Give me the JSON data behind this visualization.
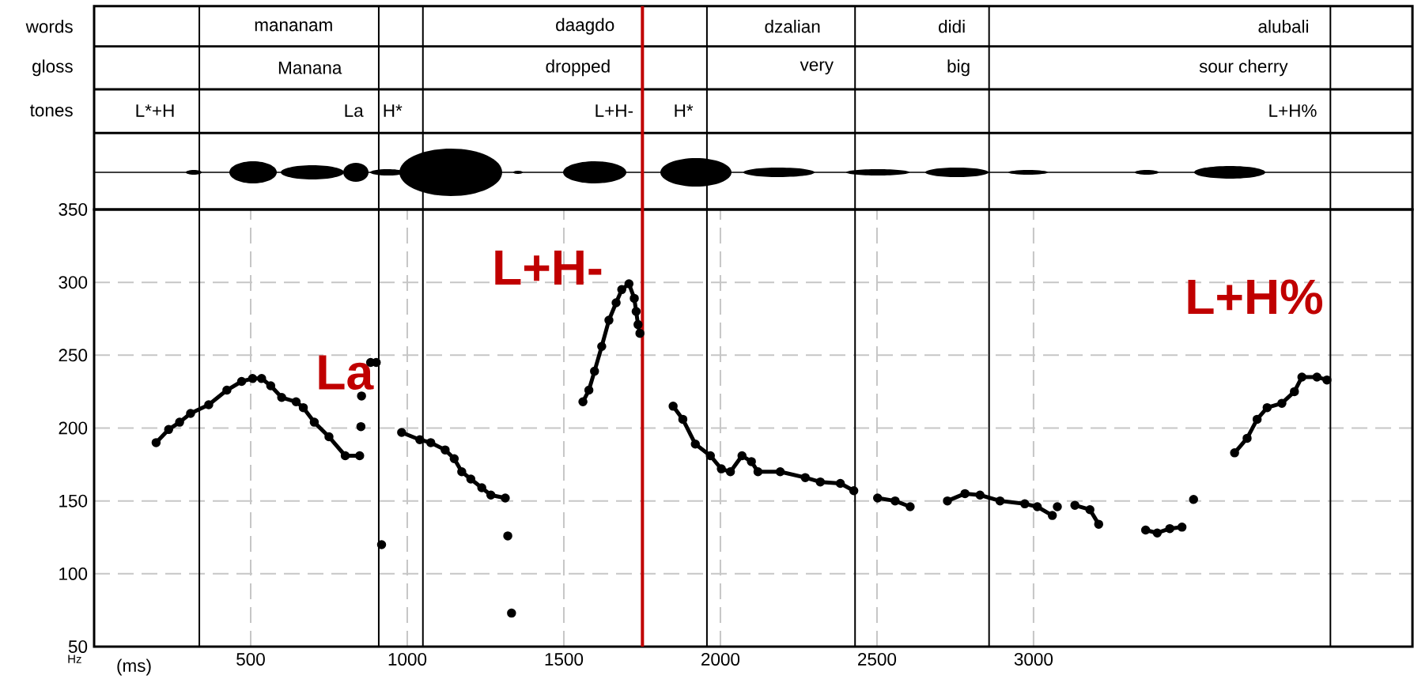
{
  "chart_data": {
    "type": "line",
    "xlabel": "(ms)",
    "ylabel": "Hz",
    "xlim": [
      0,
      4210
    ],
    "ylim": [
      50,
      350
    ],
    "xticks": [
      500,
      1000,
      1500,
      2000,
      2500,
      3000
    ],
    "yticks": [
      50,
      100,
      150,
      200,
      250,
      300,
      350
    ],
    "grid": true,
    "marker": "circle",
    "line_style": "solid",
    "series": [
      {
        "color": "#000000",
        "x": [
          198,
          238,
          273,
          308,
          366,
          424,
          471,
          506,
          535,
          564,
          599,
          645,
          668,
          703,
          750,
          802,
          848,
          850,
          852,
          853,
          854,
          870,
          883,
          901,
          910,
          918,
          950,
          982,
          1040,
          1075,
          1121,
          1150,
          1174,
          1203,
          1238,
          1267,
          1313,
          1317,
          1321,
          1327,
          1333,
          1450,
          1561,
          1580,
          1598,
          1621,
          1644,
          1667,
          1685,
          1708,
          1725,
          1731,
          1737,
          1743,
          1800,
          1849,
          1880,
          1920,
          1968,
          2003,
          2032,
          2069,
          2099,
          2120,
          2191,
          2271,
          2319,
          2383,
          2426,
          2465,
          2502,
          2558,
          2606,
          2665,
          2725,
          2781,
          2829,
          2893,
          2972,
          3012,
          3060,
          3068,
          3076,
          3100,
          3132,
          3180,
          3208,
          3280,
          3358,
          3395,
          3435,
          3474,
          3490,
          3511,
          3580,
          3642,
          3682,
          3714,
          3746,
          3793,
          3833,
          3857,
          3905,
          3937
        ],
        "values": [
          190,
          199,
          204,
          210,
          216,
          226,
          232,
          234,
          234,
          229,
          221,
          218,
          214,
          204,
          194,
          181,
          181,
          null,
          201,
          null,
          222,
          null,
          245,
          245,
          null,
          120,
          null,
          197,
          192,
          190,
          185,
          179,
          170,
          165,
          159,
          154,
          152,
          null,
          126,
          null,
          73,
          null,
          218,
          226,
          239,
          256,
          274,
          286,
          295,
          299,
          289,
          280,
          271,
          265,
          null,
          215,
          206,
          189,
          181,
          172,
          170,
          181,
          177,
          170,
          170,
          166,
          163,
          162,
          157,
          null,
          152,
          150,
          146,
          null,
          150,
          155,
          154,
          150,
          148,
          146,
          140,
          null,
          146,
          null,
          147,
          144,
          134,
          null,
          130,
          128,
          131,
          132,
          null,
          151,
          null,
          183,
          193,
          206,
          214,
          217,
          225,
          235,
          235,
          233
        ]
      }
    ],
    "ref_lines": [
      {
        "axis": "x",
        "value": 336
      },
      {
        "axis": "x",
        "value": 909
      },
      {
        "axis": "x",
        "value": 1050
      },
      {
        "axis": "x",
        "value": 1751,
        "color": "#c00000"
      },
      {
        "axis": "x",
        "value": 1957
      },
      {
        "axis": "x",
        "value": 2430
      },
      {
        "axis": "x",
        "value": 2858
      },
      {
        "axis": "x",
        "value": 3948
      }
    ],
    "annotations": [
      "words",
      "gloss",
      "tones",
      "mananam",
      "daagdo",
      "dzalian",
      "didi",
      "alubali",
      "Manana",
      "dropped",
      "very",
      "big",
      "sour cherry",
      "L*+H",
      "La",
      "H*",
      "L+H-",
      "H*",
      "L+H%",
      "La",
      "L+H-",
      "L+H%"
    ]
  }
}
